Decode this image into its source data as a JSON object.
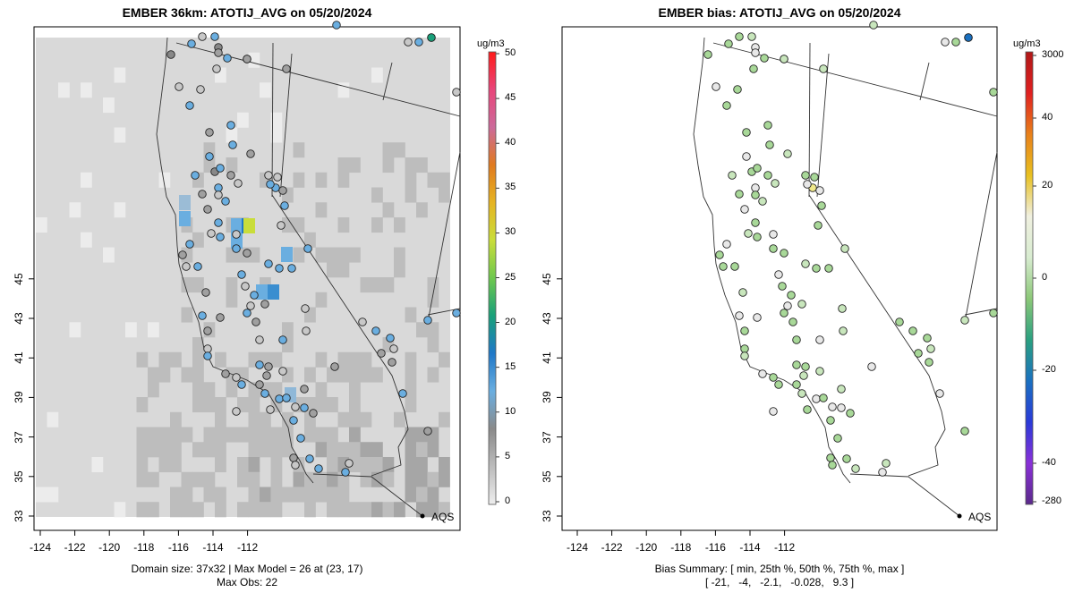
{
  "left_panel": {
    "title": "EMBER 36km: ATOTIJ_AVG on 05/20/2024",
    "footer_line1": "Domain size: 37x32 | Max Model = 26 at (23, 17)",
    "footer_line2": "Max Obs: 22",
    "colorbar_unit": "ug/m3",
    "colorbar_ticks": [
      "0",
      "5",
      "10",
      "15",
      "20",
      "25",
      "30",
      "35",
      "40",
      "45",
      "50"
    ],
    "colorbar_colors": [
      "#eeeeee",
      "#bcbcbc",
      "#8a8a8a",
      "#6aaee0",
      "#1f78c8",
      "#19a07a",
      "#6ec84e",
      "#c9dd3a",
      "#e6b422",
      "#e07a1f",
      "#cc6a9a",
      "#e8457a",
      "#ff1a1a"
    ],
    "x_ticks": [
      "-124",
      "-122",
      "-120",
      "-118",
      "-116",
      "-114",
      "-112"
    ],
    "y_ticks": [
      "33",
      "35",
      "37",
      "39",
      "41",
      "43",
      "45"
    ],
    "marker_label": "AQS"
  },
  "right_panel": {
    "title": "EMBER bias: ATOTIJ_AVG on 05/20/2024",
    "footer_line1": "Bias Summary: [ min, 25th %, 50th %, 75th %, max ]",
    "footer_line2": "[ -21,   -4,   -2.1,   -0.028,   9.3 ]",
    "colorbar_unit": "ug/m3",
    "colorbar_ticks": [
      "3000",
      "40",
      "20",
      "0",
      "-20",
      "-40",
      "-280"
    ],
    "colorbar_colors": [
      "#b01818",
      "#e02020",
      "#e8801a",
      "#e8c020",
      "#f0f0e0",
      "#d8ecd0",
      "#8cc878",
      "#2aa080",
      "#1a70c0",
      "#2a3ad8",
      "#8a30d8",
      "#5a2a8a"
    ],
    "x_ticks": [
      "-124",
      "-122",
      "-120",
      "-118",
      "-116",
      "-114",
      "-112"
    ],
    "y_ticks": [
      "33",
      "35",
      "37",
      "39",
      "41",
      "43",
      "45"
    ],
    "marker_label": "AQS"
  },
  "colors": {
    "grid_light": "#d9d9d9",
    "grid_mid": "#bdbdbd",
    "grid_dark": "#a6a6a6",
    "obs_gray": "#a0a0a0",
    "obs_blue": "#6aaee0",
    "bias_green": "#a8d898",
    "bias_light": "#e8e8e8"
  }
}
